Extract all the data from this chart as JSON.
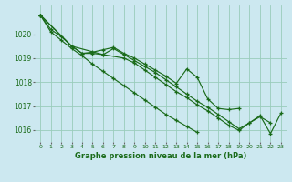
{
  "title": "Graphe pression niveau de la mer (hPa)",
  "bg_color": "#cce8f0",
  "grid_color": "#99ccbb",
  "line_color": "#1a6b1a",
  "xlim": [
    -0.5,
    23.5
  ],
  "ylim": [
    1015.5,
    1021.2
  ],
  "yticks": [
    1016,
    1017,
    1018,
    1019,
    1020
  ],
  "xticks": [
    0,
    1,
    2,
    3,
    4,
    5,
    6,
    7,
    8,
    9,
    10,
    11,
    12,
    13,
    14,
    15,
    16,
    17,
    18,
    19,
    20,
    21,
    22,
    23
  ],
  "line1_x": [
    0,
    1,
    2,
    3,
    4,
    5,
    6,
    7,
    8,
    9,
    10,
    11,
    12,
    13,
    14,
    15,
    16,
    17,
    18,
    19
  ],
  "line1_y": [
    1020.8,
    1020.2,
    1019.9,
    1019.5,
    1019.2,
    1019.25,
    1019.35,
    1019.45,
    1019.2,
    1019.0,
    1018.75,
    1018.5,
    1018.25,
    1017.95,
    1018.55,
    1018.2,
    1017.3,
    1016.9,
    1016.85,
    1016.9
  ],
  "line2_x": [
    0,
    1,
    2,
    3,
    4,
    5,
    6,
    7,
    8,
    9,
    10,
    11,
    12,
    13,
    14,
    15
  ],
  "line2_y": [
    1020.8,
    1020.1,
    1019.75,
    1019.4,
    1019.1,
    1018.75,
    1018.45,
    1018.15,
    1017.85,
    1017.55,
    1017.25,
    1016.95,
    1016.65,
    1016.4,
    1016.15,
    1015.9
  ],
  "line3_x": [
    0,
    3,
    4,
    5,
    6,
    7,
    8,
    9,
    10,
    11,
    12,
    13,
    14,
    15,
    16,
    17,
    18,
    19,
    20,
    21,
    22,
    23
  ],
  "line3_y": [
    1020.8,
    1019.5,
    1019.2,
    1019.2,
    1019.15,
    1019.4,
    1019.15,
    1018.9,
    1018.65,
    1018.4,
    1018.1,
    1017.8,
    1017.5,
    1017.2,
    1016.95,
    1016.65,
    1016.35,
    1016.05,
    1016.3,
    1016.6,
    1015.85,
    1016.7
  ],
  "line4_x": [
    0,
    3,
    6,
    8,
    9,
    10,
    11,
    12,
    13,
    14,
    15,
    16,
    17,
    18,
    19,
    20,
    21,
    22
  ],
  "line4_y": [
    1020.8,
    1019.5,
    1019.15,
    1019.0,
    1018.8,
    1018.5,
    1018.2,
    1017.9,
    1017.6,
    1017.35,
    1017.05,
    1016.8,
    1016.5,
    1016.2,
    1015.98,
    1016.3,
    1016.55,
    1016.3
  ]
}
